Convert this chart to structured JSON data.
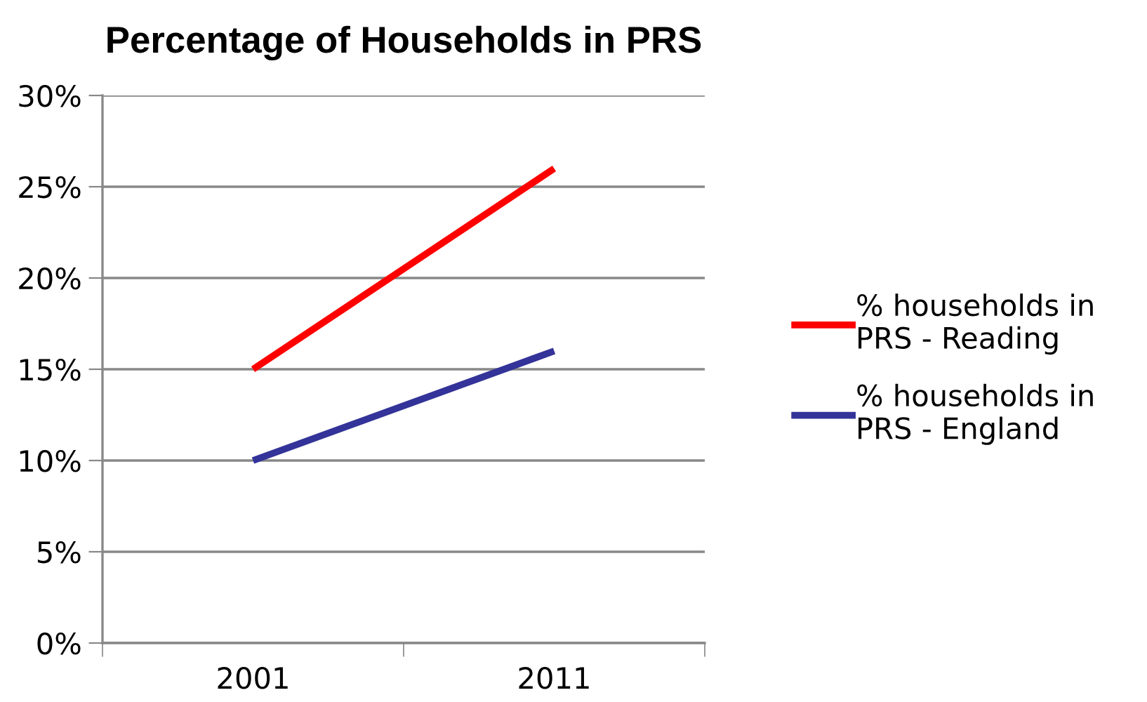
{
  "chart_data": {
    "type": "line",
    "title": "Percentage of Households in PRS",
    "categories": [
      "2001",
      "2011"
    ],
    "series": [
      {
        "name": "% households in PRS - Reading",
        "color": "#ff0000",
        "values": [
          15,
          26
        ]
      },
      {
        "name": "% households in PRS - England",
        "color": "#333399",
        "values": [
          10,
          16
        ]
      }
    ],
    "ylim": [
      0,
      30
    ],
    "yticks": [
      {
        "value": 0,
        "label": "0%"
      },
      {
        "value": 5,
        "label": "5%"
      },
      {
        "value": 10,
        "label": "10%"
      },
      {
        "value": 15,
        "label": "15%"
      },
      {
        "value": 20,
        "label": "20%"
      },
      {
        "value": 25,
        "label": "25%"
      },
      {
        "value": 30,
        "label": "30%"
      }
    ],
    "grid": "y",
    "legend": "right",
    "marker": "none",
    "line_style": "solid"
  }
}
